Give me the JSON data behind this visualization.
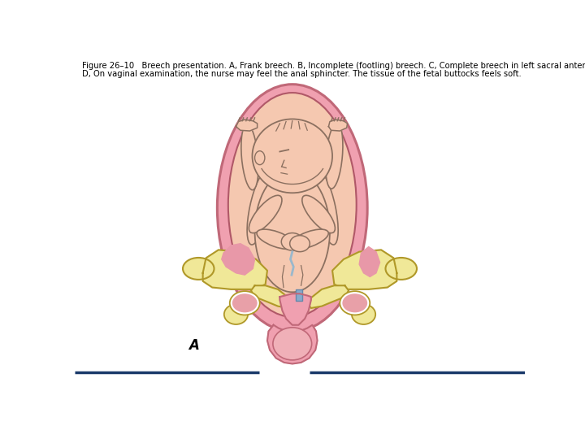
{
  "title_line1": "Figure 26–10   Breech presentation. A, Frank breech. B, Incomplete (footling) breech. C, Complete breech in left sacral anterior (LSA) position.",
  "title_line2": "D, On vaginal examination, the nurse may feel the anal sphincter. The tissue of the fetal buttocks feels soft.",
  "label_A": "A",
  "bg_color": "#ffffff",
  "uterus_pink": "#f0a0b0",
  "uterus_inner": "#f5c8b0",
  "fetus_skin": "#f5c8b0",
  "fetus_line": "#8B7060",
  "pelvis_fill": "#f0e898",
  "pelvis_line": "#b09828",
  "pink_tissue": "#f0a0b0",
  "blue_marker": "#88aacc",
  "line_color": "#1a3a6a",
  "line_width": 2.5,
  "text_fontsize": 7.2,
  "label_fontsize": 12
}
